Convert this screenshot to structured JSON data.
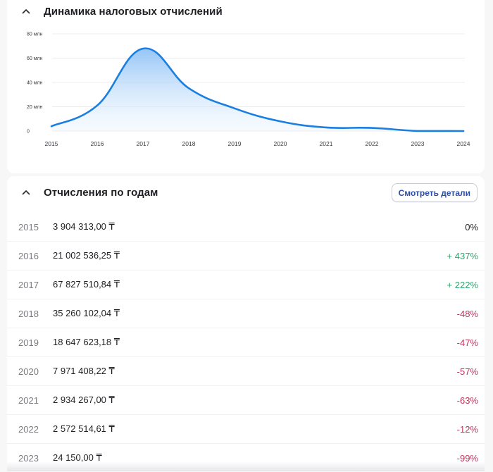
{
  "chart_section": {
    "title": "Динамика налоговых отчислений",
    "collapse_icon": "chevron-up-icon"
  },
  "chart_data": {
    "type": "area",
    "title": "Динамика налоговых отчислений",
    "xlabel": "",
    "ylabel": "",
    "x": [
      "2015",
      "2016",
      "2017",
      "2018",
      "2019",
      "2020",
      "2021",
      "2022",
      "2023",
      "2024"
    ],
    "series": [
      {
        "name": "Отчисления",
        "values": [
          3904313.0,
          21002536.25,
          67827510.84,
          35260102.04,
          18647623.18,
          7971408.22,
          2934267.0,
          2572514.61,
          24150.0,
          0
        ]
      }
    ],
    "y_ticks": [
      "0",
      "20 млн",
      "40 млн",
      "60 млн",
      "80 млн"
    ],
    "ylim": [
      0,
      80000000
    ],
    "grid": true,
    "legend": "none",
    "line_color": "#1a7fe0",
    "fill_color": "#9ccaf7"
  },
  "table_section": {
    "title": "Отчисления по годам",
    "collapse_icon": "chevron-up-icon",
    "details_button": "Смотреть детали",
    "rows": [
      {
        "year": "2015",
        "amount": "3 904 313,00 ₸",
        "delta": "0%",
        "trend": "neutral"
      },
      {
        "year": "2016",
        "amount": "21 002 536,25 ₸",
        "delta": "+ 437%",
        "trend": "up"
      },
      {
        "year": "2017",
        "amount": "67 827 510,84 ₸",
        "delta": "+ 222%",
        "trend": "up"
      },
      {
        "year": "2018",
        "amount": "35 260 102,04 ₸",
        "delta": "-48%",
        "trend": "down"
      },
      {
        "year": "2019",
        "amount": "18 647 623,18 ₸",
        "delta": "-47%",
        "trend": "down"
      },
      {
        "year": "2020",
        "amount": "7 971 408,22 ₸",
        "delta": "-57%",
        "trend": "down"
      },
      {
        "year": "2021",
        "amount": "2 934 267,00 ₸",
        "delta": "-63%",
        "trend": "down"
      },
      {
        "year": "2022",
        "amount": "2 572 514,61 ₸",
        "delta": "-12%",
        "trend": "down"
      },
      {
        "year": "2023",
        "amount": "24 150,00 ₸",
        "delta": "-99%",
        "trend": "down"
      }
    ]
  },
  "colors": {
    "positive": "#2fa56f",
    "negative": "#c0335a",
    "link": "#2a4ea8"
  }
}
